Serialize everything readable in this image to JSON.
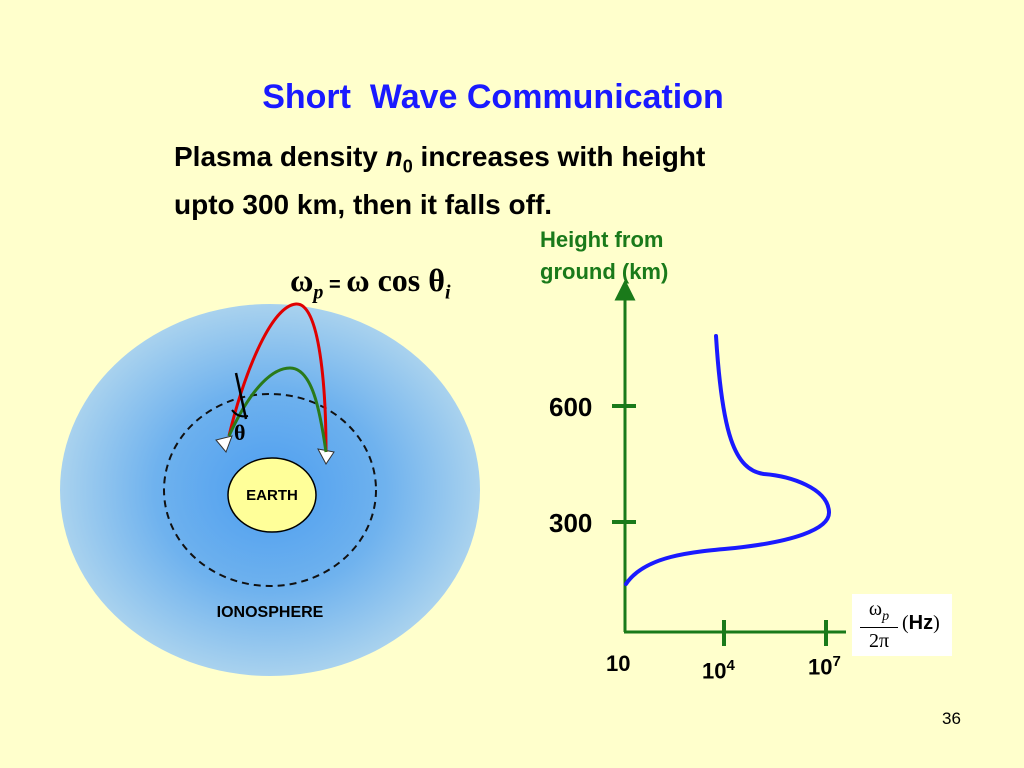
{
  "title": "Short  Wave Communication",
  "intro": {
    "line1_a": "Plasma density ",
    "var": "n",
    "sub": "0",
    "line1_b": " increases with height",
    "line2": "upto 300 km, then it falls off."
  },
  "formula": {
    "omega": "ω",
    "sub_p": "p",
    "equals": " = ",
    "rhs": "ω cos θ",
    "sub_i": "i"
  },
  "diagram": {
    "earth_label": "EARTH",
    "ionosphere_label": "IONOSPHERE",
    "theta_label": "θ",
    "colors": {
      "ionosphere": "#7ab9ee",
      "earth": "#ffff99",
      "high_ray": "#e00000",
      "low_ray": "#2a7a1a"
    }
  },
  "chart": {
    "axis_title_line1": "Height from",
    "axis_title_line2": "ground (km)",
    "y_ticks": [
      "600",
      "300"
    ],
    "x_tick_origin": "10",
    "x_ticks": [
      {
        "base": "10",
        "exp": "4"
      },
      {
        "base": "10",
        "exp": "7"
      }
    ],
    "xlabel": {
      "num": "ω",
      "num_sub": "p",
      "den": "2π",
      "open": "(",
      "unit": "Hz",
      "close": ")"
    },
    "colors": {
      "axis": "#1a7a1a",
      "curve": "#1a1aff"
    }
  },
  "page_number": "36"
}
